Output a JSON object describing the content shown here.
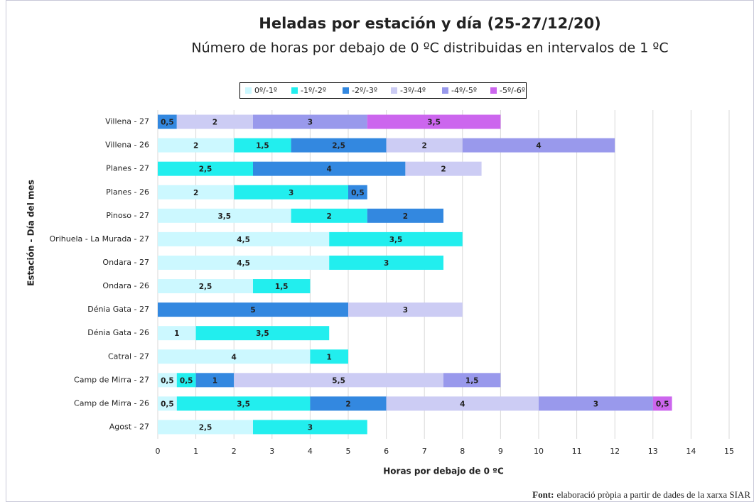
{
  "chart_data": {
    "type": "stacked_barh",
    "title": "Heladas por estación y día (25-27/12/20)",
    "subtitle": "Número de horas por debajo de 0 ºC distribuidas en intervalos de 1 ºC",
    "x_label": "Horas por debajo de 0 ºC",
    "y_label": "Estación - Día del mes",
    "source_label": "Font:",
    "source": "elaboració pròpia a partir de dades de la xarxa SIAR",
    "categories": [
      "Villena - 27",
      "Villena - 26",
      "Planes - 27",
      "Planes - 26",
      "Pinoso - 27",
      "Orihuela - La Murada - 27",
      "Ondara - 27",
      "Ondara - 26",
      "Dénia Gata - 27",
      "Dénia Gata - 26",
      "Catral - 27",
      "Camp de Mirra - 27",
      "Camp de Mirra - 26",
      "Agost - 27"
    ],
    "series": [
      {
        "name": "0º/-1º",
        "color": "#ccf8ff",
        "values": [
          null,
          2,
          null,
          2,
          3.5,
          4.5,
          4.5,
          2.5,
          null,
          1,
          4,
          0.5,
          0.5,
          2.5
        ],
        "value_labels": [
          null,
          "2",
          null,
          "2",
          "3,5",
          "4,5",
          "4,5",
          "2,5",
          null,
          "1",
          "4",
          "0,5",
          "0,5",
          "2,5"
        ]
      },
      {
        "name": "-1º/-2º",
        "color": "#22eeee",
        "values": [
          null,
          1.5,
          2.5,
          3,
          2,
          3.5,
          3,
          1.5,
          null,
          3.5,
          1,
          0.5,
          3.5,
          3
        ],
        "value_labels": [
          null,
          "1,5",
          "2,5",
          "3",
          "2",
          "3,5",
          "3",
          "1,5",
          null,
          "3,5",
          "1",
          "0,5",
          "3,5",
          "3"
        ]
      },
      {
        "name": "-2º/-3º",
        "color": "#3388e0",
        "values": [
          0.5,
          2.5,
          4,
          0.5,
          2,
          null,
          null,
          null,
          5,
          null,
          null,
          1,
          2,
          null
        ],
        "value_labels": [
          "0,5",
          "2,5",
          "4",
          "0,5",
          "2",
          null,
          null,
          null,
          "5",
          null,
          null,
          "1",
          "2",
          null
        ]
      },
      {
        "name": "-3º/-4º",
        "color": "#ccccf4",
        "values": [
          2,
          2,
          2,
          null,
          null,
          null,
          null,
          null,
          3,
          null,
          null,
          5.5,
          4,
          null
        ],
        "value_labels": [
          "2",
          "2",
          "2",
          null,
          null,
          null,
          null,
          null,
          "3",
          null,
          null,
          "5,5",
          "4",
          null
        ]
      },
      {
        "name": "-4º/-5º",
        "color": "#9999ec",
        "values": [
          3,
          4,
          null,
          null,
          null,
          null,
          null,
          null,
          null,
          null,
          null,
          1.5,
          3,
          null
        ],
        "value_labels": [
          "3",
          "4",
          null,
          null,
          null,
          null,
          null,
          null,
          null,
          null,
          null,
          "1,5",
          "3",
          null
        ]
      },
      {
        "name": "-5º/-6º",
        "color": "#cc66ee",
        "values": [
          3.5,
          null,
          null,
          null,
          null,
          null,
          null,
          null,
          null,
          null,
          null,
          null,
          0.5,
          null
        ],
        "value_labels": [
          "3,5",
          null,
          null,
          null,
          null,
          null,
          null,
          null,
          null,
          null,
          null,
          null,
          "0,5",
          null
        ]
      }
    ],
    "xlim": [
      0,
      15
    ],
    "xticks": [
      0,
      1,
      2,
      3,
      4,
      5,
      6,
      7,
      8,
      9,
      10,
      11,
      12,
      13,
      14,
      15
    ],
    "grid": true,
    "legend": "top"
  }
}
